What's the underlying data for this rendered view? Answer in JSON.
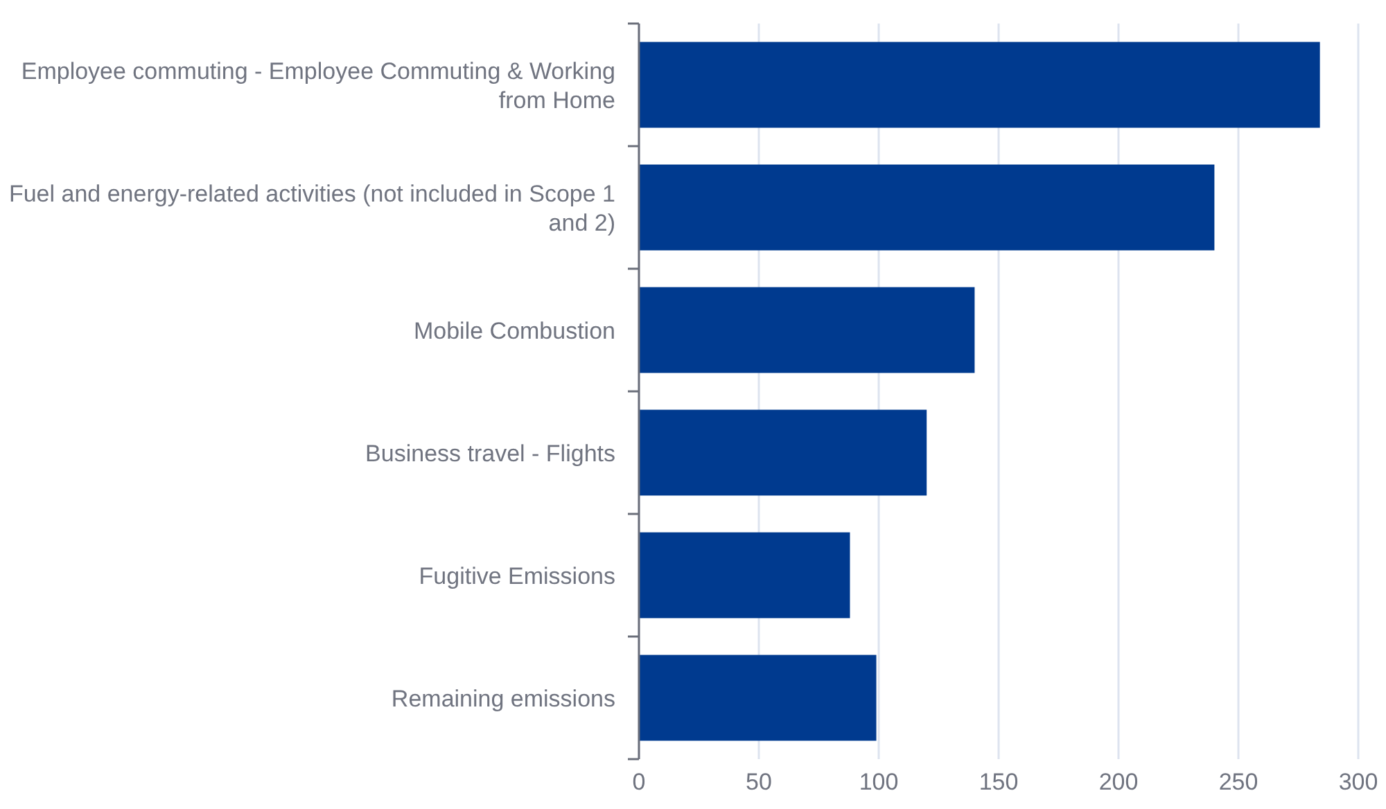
{
  "chart_data": {
    "type": "bar",
    "orientation": "horizontal",
    "categories": [
      "Employee commuting - Employee Commuting & Working from Home",
      "Fuel and energy-related activities (not included in Scope 1 and 2)",
      "Mobile Combustion",
      "Business travel - Flights",
      "Fugitive Emissions",
      "Remaining emissions"
    ],
    "values": [
      284,
      240,
      140,
      120,
      88,
      99
    ],
    "color": "#003a8f",
    "xlim": [
      0,
      300
    ],
    "xticks": [
      0,
      50,
      100,
      150,
      200,
      250,
      300
    ],
    "grid": "x"
  }
}
